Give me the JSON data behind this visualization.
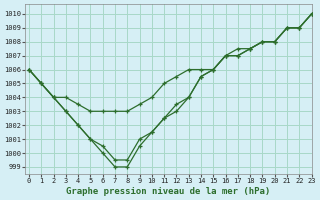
{
  "title": "Graphe pression niveau de la mer (hPa)",
  "bg_color": "#d6eff5",
  "grid_color": "#a8d8c8",
  "line_color": "#2d6e2d",
  "xlim": [
    -0.3,
    23
  ],
  "ylim": [
    998.5,
    1010.7
  ],
  "yticks": [
    999,
    1000,
    1001,
    1002,
    1003,
    1004,
    1005,
    1006,
    1007,
    1008,
    1009,
    1010
  ],
  "xticks": [
    0,
    1,
    2,
    3,
    4,
    5,
    6,
    7,
    8,
    9,
    10,
    11,
    12,
    13,
    14,
    15,
    16,
    17,
    18,
    19,
    20,
    21,
    22,
    23
  ],
  "series": [
    [
      1006,
      1005,
      1004,
      1004,
      1003.5,
      1003,
      1003,
      1003,
      1003,
      1003.5,
      1004,
      1005,
      1005.5,
      1006,
      1006,
      1006,
      1007,
      1007,
      1007.5,
      1008,
      1008,
      1009,
      1009,
      1010
    ],
    [
      1006,
      1005,
      1004,
      1003,
      1002,
      1001,
      1000.5,
      999.5,
      999.5,
      1001,
      1001.5,
      1002.5,
      1003.5,
      1004,
      1005.5,
      1006,
      1007,
      1007,
      1007.5,
      1008,
      1008,
      1009,
      1009,
      1010
    ],
    [
      1006,
      1005,
      1004,
      1003,
      1002,
      1001,
      1000,
      999,
      999,
      1000.5,
      1001.5,
      1002.5,
      1003,
      1004,
      1005.5,
      1006,
      1007,
      1007.5,
      1007.5,
      1008,
      1008,
      1009,
      1009,
      1010
    ]
  ]
}
